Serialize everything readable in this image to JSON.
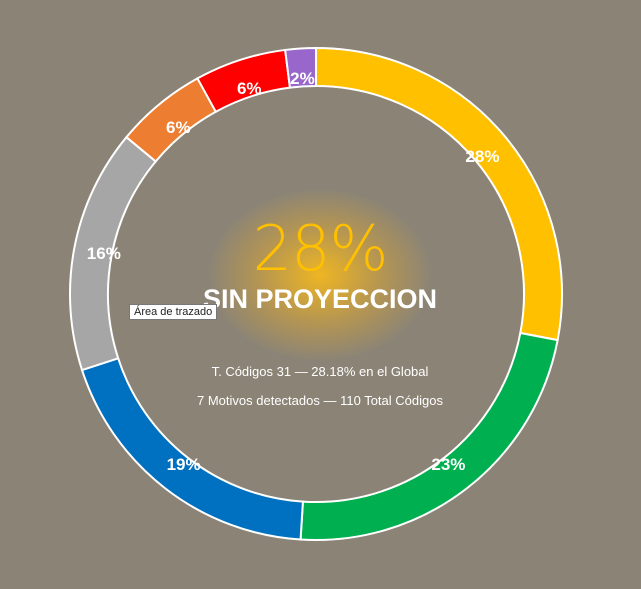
{
  "chart_data": {
    "type": "pie",
    "style": "donut",
    "categories": [
      "",
      "",
      "",
      "",
      "",
      "",
      ""
    ],
    "values": [
      28,
      23,
      19,
      16,
      6,
      6,
      2
    ],
    "labels": [
      "28%",
      "23%",
      "19%",
      "16%",
      "6%",
      "6%",
      "2%"
    ],
    "colors": [
      "#ffc000",
      "#00b050",
      "#0070c0",
      "#a6a6a6",
      "#ed7d31",
      "#ff0000",
      "#9966cc"
    ],
    "grid": false,
    "legend": "none"
  },
  "center": {
    "percent": "28%",
    "category": "SIN PROYECCION",
    "line1": "T. Códigos 31 — 28.18% en el Global",
    "line2": "7 Motivos detectados — 110 Total Códigos",
    "percent_color": "#ffc000"
  },
  "tooltip": {
    "text": "Área de trazado"
  },
  "background_color": "#8b8476"
}
